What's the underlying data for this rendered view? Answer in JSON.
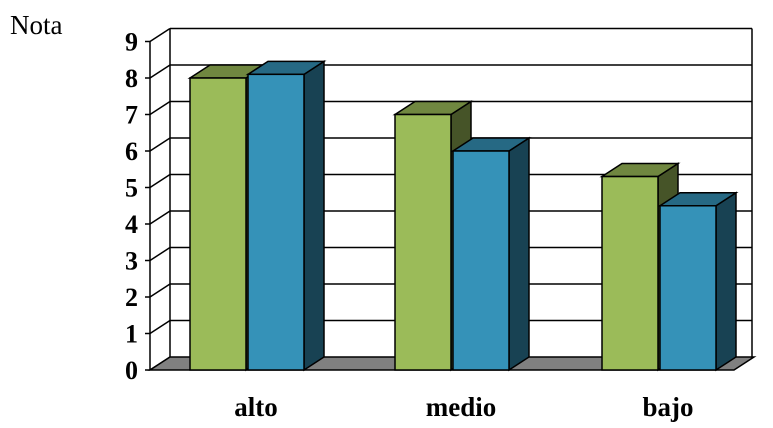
{
  "chart_data": {
    "type": "bar",
    "ylabel": "Nota",
    "xlabel": "",
    "categories": [
      "alto",
      "medio",
      "bajo"
    ],
    "series": [
      {
        "values": [
          8.0,
          7.0,
          5.3
        ],
        "color": "#9BBB59"
      },
      {
        "values": [
          8.1,
          6.0,
          4.5
        ],
        "color": "#3592B8"
      }
    ],
    "ylim": [
      0,
      9
    ],
    "yticks": [
      "0",
      "1",
      "2",
      "3",
      "4",
      "5",
      "6",
      "7",
      "8",
      "9"
    ],
    "grid": true,
    "three_d": true
  }
}
